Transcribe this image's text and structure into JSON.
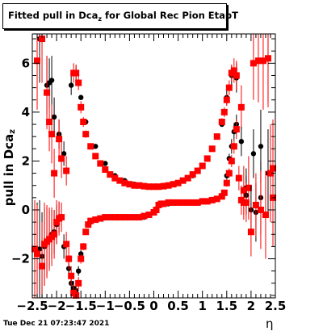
{
  "title": {
    "main": "Fitted pull in Dca",
    "sub": "z",
    "rest": " for Global Rec Pion EtapT"
  },
  "ylabel": {
    "main": "pull in Dca",
    "sub": "z"
  },
  "xlabel": "η",
  "timestamp": "Tue Dec 21 07:23:47 2021",
  "colors": {
    "black_series": "#000000",
    "red_series": "#ff0000"
  },
  "chart_data": {
    "type": "scatter",
    "xlim": [
      -2.5,
      2.5
    ],
    "ylim": [
      -3.6,
      7.2
    ],
    "xticks": [
      "−2.5",
      "−2",
      "−1.5",
      "−1",
      "−0.5",
      "0",
      "0.5",
      "1",
      "1.5",
      "2",
      "2.5"
    ],
    "yticks": [
      "−2",
      "0",
      "2",
      "4",
      "6"
    ],
    "series": [
      {
        "color": "black",
        "kind": "upper",
        "x": [
          -2.35,
          -2.2,
          -2.15,
          -2.1,
          -2.05,
          -1.95,
          -1.85,
          -1.7,
          -1.6,
          -1.5,
          -1.4,
          -1.2,
          -1.0,
          -0.8,
          -0.6,
          -0.4,
          -0.2,
          0.0,
          0.2,
          0.4,
          0.6,
          0.8,
          1.0,
          1.2,
          1.4,
          1.5,
          1.6,
          1.7,
          1.9,
          2.05,
          2.2,
          2.35
        ],
        "y": [
          7.0,
          5.1,
          5.2,
          5.3,
          3.8,
          3.1,
          2.3,
          5.1,
          5.6,
          4.6,
          3.6,
          2.6,
          1.9,
          1.4,
          1.2,
          1.05,
          1.0,
          0.95,
          1.0,
          1.05,
          1.2,
          1.4,
          1.8,
          2.5,
          3.5,
          4.6,
          5.5,
          5.4,
          0.9,
          2.3,
          2.6,
          6.2
        ],
        "error": [
          1.8,
          1.2,
          1.0,
          1.0,
          0.8,
          0.6,
          0.5,
          0.4,
          0.3,
          0.1,
          0.05,
          0.03,
          0.03,
          0.03,
          0.03,
          0.03,
          0.03,
          0.03,
          0.03,
          0.03,
          0.03,
          0.03,
          0.03,
          0.05,
          0.1,
          0.3,
          0.4,
          0.6,
          0.8,
          1.0,
          1.5,
          1.8
        ]
      },
      {
        "color": "red",
        "kind": "upper",
        "x": [
          -2.4,
          -2.3,
          -2.2,
          -2.15,
          -2.1,
          -2.05,
          -1.95,
          -1.9,
          -1.8,
          -1.65,
          -1.6,
          -1.55,
          -1.5,
          -1.45,
          -1.4,
          -1.3,
          -1.2,
          -1.1,
          -1.0,
          -0.9,
          -0.8,
          -0.7,
          -0.6,
          -0.5,
          -0.4,
          -0.3,
          -0.2,
          -0.1,
          0.0,
          0.1,
          0.2,
          0.3,
          0.4,
          0.5,
          0.6,
          0.7,
          0.8,
          0.9,
          1.0,
          1.1,
          1.2,
          1.3,
          1.4,
          1.45,
          1.5,
          1.55,
          1.6,
          1.65,
          1.7,
          1.8,
          1.85,
          1.95,
          2.05,
          2.15,
          2.25,
          2.35,
          2.45
        ],
        "y": [
          6.1,
          7.0,
          4.8,
          3.6,
          3.1,
          1.5,
          2.9,
          2.1,
          1.6,
          5.6,
          5.6,
          5.2,
          4.2,
          3.6,
          3.1,
          2.6,
          2.2,
          1.9,
          1.65,
          1.45,
          1.3,
          1.2,
          1.1,
          1.05,
          1.0,
          1.0,
          0.97,
          0.95,
          0.95,
          0.95,
          0.97,
          1.0,
          1.05,
          1.1,
          1.2,
          1.3,
          1.45,
          1.6,
          1.8,
          2.1,
          2.5,
          3.0,
          3.6,
          4.0,
          4.5,
          5.0,
          5.6,
          5.7,
          5.5,
          4.2,
          0.8,
          0.9,
          6.0,
          6.1,
          6.1,
          6.2,
          0.5
        ],
        "error": [
          2.0,
          1.8,
          1.5,
          1.2,
          1.2,
          1.0,
          0.8,
          0.8,
          0.6,
          0.4,
          0.35,
          0.3,
          0.25,
          0.2,
          0.15,
          0.1,
          0.07,
          0.05,
          0.05,
          0.04,
          0.04,
          0.04,
          0.04,
          0.04,
          0.04,
          0.04,
          0.04,
          0.04,
          0.04,
          0.04,
          0.04,
          0.04,
          0.04,
          0.04,
          0.04,
          0.04,
          0.04,
          0.04,
          0.05,
          0.06,
          0.08,
          0.1,
          0.15,
          0.2,
          0.25,
          0.3,
          0.35,
          0.5,
          0.6,
          0.9,
          1.0,
          1.3,
          1.5,
          1.7,
          2.0,
          2.0,
          2.0
        ]
      },
      {
        "color": "black",
        "kind": "lower",
        "x": [
          -2.4,
          -2.35,
          -2.3,
          -2.25,
          -2.2,
          -2.15,
          -2.1,
          -2.05,
          -2.0,
          -1.95,
          -1.85,
          -1.75,
          -1.7,
          -1.65,
          -1.6,
          -1.55,
          -1.5,
          -1.4,
          -1.3,
          -1.2,
          -1.1,
          -1.0,
          -0.8,
          -0.6,
          -0.4,
          -0.2,
          0.0,
          0.1,
          0.2,
          0.3,
          0.4,
          0.6,
          0.8,
          1.0,
          1.2,
          1.4,
          1.5,
          1.55,
          1.6,
          1.65,
          1.7,
          1.8,
          1.9,
          2.0,
          2.1,
          2.2,
          2.35
        ],
        "y": [
          -1.7,
          -1.6,
          -1.9,
          -1.5,
          -1.3,
          -1.2,
          -1.0,
          -0.9,
          -0.6,
          -0.3,
          -1.5,
          -2.4,
          -3.0,
          -3.2,
          -3.3,
          -2.5,
          -1.8,
          -0.9,
          -0.5,
          -0.4,
          -0.35,
          -0.3,
          -0.3,
          -0.3,
          -0.3,
          -0.3,
          -0.1,
          0.2,
          0.25,
          0.25,
          0.3,
          0.3,
          0.3,
          0.35,
          0.4,
          0.6,
          1.4,
          2.1,
          2.6,
          3.2,
          3.5,
          2.8,
          0.6,
          0.0,
          -0.1,
          0.5,
          1.5
        ],
        "error": [
          2.0,
          2.0,
          1.8,
          1.6,
          1.4,
          1.2,
          1.0,
          0.9,
          0.8,
          0.6,
          0.5,
          0.4,
          0.35,
          0.3,
          0.25,
          0.2,
          0.15,
          0.1,
          0.05,
          0.04,
          0.04,
          0.04,
          0.04,
          0.04,
          0.04,
          0.04,
          0.04,
          0.04,
          0.04,
          0.04,
          0.04,
          0.04,
          0.04,
          0.04,
          0.05,
          0.08,
          0.15,
          0.2,
          0.3,
          0.35,
          0.4,
          0.6,
          0.8,
          1.0,
          1.2,
          1.5,
          1.8
        ]
      },
      {
        "color": "red",
        "kind": "lower",
        "x": [
          -2.45,
          -2.4,
          -2.3,
          -2.25,
          -2.2,
          -2.15,
          -2.1,
          -2.05,
          -2.0,
          -1.95,
          -1.9,
          -1.8,
          -1.75,
          -1.7,
          -1.65,
          -1.6,
          -1.55,
          -1.5,
          -1.45,
          -1.4,
          -1.35,
          -1.3,
          -1.2,
          -1.1,
          -1.0,
          -0.9,
          -0.8,
          -0.7,
          -0.6,
          -0.5,
          -0.4,
          -0.3,
          -0.2,
          -0.1,
          0.0,
          0.05,
          0.1,
          0.15,
          0.2,
          0.3,
          0.4,
          0.5,
          0.6,
          0.7,
          0.8,
          0.9,
          1.0,
          1.1,
          1.2,
          1.3,
          1.4,
          1.45,
          1.5,
          1.55,
          1.6,
          1.65,
          1.7,
          1.75,
          1.8,
          1.85,
          1.9,
          2.0,
          2.1,
          2.2,
          2.3,
          2.4,
          2.45
        ],
        "y": [
          -1.6,
          -1.8,
          -2.3,
          -1.4,
          -1.3,
          -1.2,
          -1.1,
          -1.0,
          -0.5,
          -0.35,
          -0.3,
          -1.4,
          -2.0,
          -2.7,
          -3.4,
          -3.5,
          -3.0,
          -2.0,
          -1.5,
          -0.9,
          -0.6,
          -0.45,
          -0.4,
          -0.35,
          -0.3,
          -0.3,
          -0.3,
          -0.3,
          -0.3,
          -0.3,
          -0.3,
          -0.3,
          -0.25,
          -0.2,
          -0.1,
          0.0,
          0.2,
          0.25,
          0.25,
          0.3,
          0.3,
          0.3,
          0.3,
          0.3,
          0.3,
          0.3,
          0.35,
          0.35,
          0.4,
          0.45,
          0.55,
          0.7,
          1.1,
          1.5,
          2.0,
          2.6,
          3.3,
          1.3,
          0.4,
          0.3,
          0.3,
          -0.9,
          0.2,
          0.0,
          -0.2,
          1.5,
          1.7
        ],
        "error": [
          2.0,
          2.0,
          1.8,
          1.7,
          1.5,
          1.3,
          1.2,
          1.0,
          0.9,
          0.7,
          0.6,
          0.5,
          0.45,
          0.4,
          0.35,
          0.3,
          0.25,
          0.2,
          0.15,
          0.1,
          0.08,
          0.06,
          0.05,
          0.04,
          0.04,
          0.04,
          0.04,
          0.04,
          0.04,
          0.04,
          0.04,
          0.04,
          0.04,
          0.04,
          0.04,
          0.04,
          0.04,
          0.04,
          0.04,
          0.04,
          0.04,
          0.04,
          0.04,
          0.04,
          0.04,
          0.04,
          0.04,
          0.04,
          0.05,
          0.06,
          0.08,
          0.1,
          0.15,
          0.2,
          0.25,
          0.3,
          0.4,
          0.5,
          0.6,
          0.7,
          0.8,
          1.0,
          1.3,
          1.6,
          1.8,
          2.0,
          2.0
        ]
      }
    ]
  }
}
